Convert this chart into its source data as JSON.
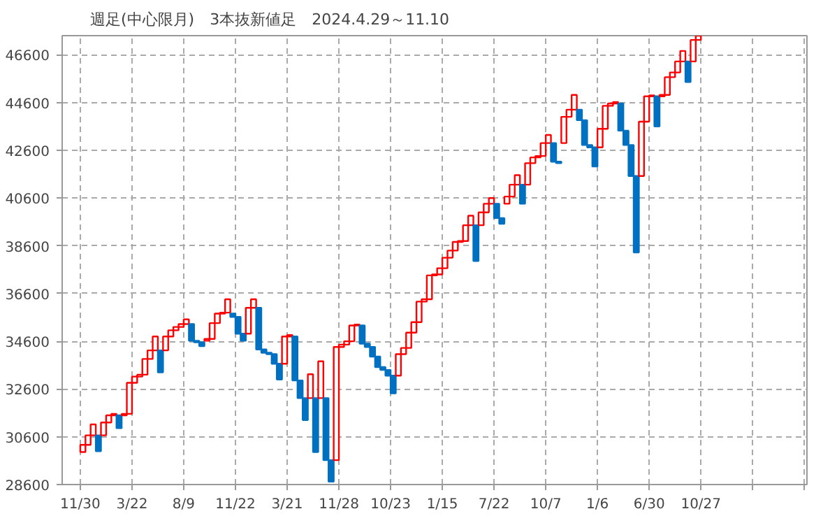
{
  "chart_data": {
    "type": "bar",
    "title": "週足(中心限月)　3本抜新値足　2024.4.29～11.10",
    "categories": [
      "11/30",
      null,
      null,
      null,
      null,
      null,
      null,
      null,
      null,
      null,
      "3/22",
      null,
      null,
      null,
      null,
      null,
      null,
      null,
      null,
      null,
      "8/9",
      null,
      null,
      null,
      null,
      null,
      null,
      null,
      null,
      null,
      "11/22",
      null,
      null,
      null,
      null,
      null,
      null,
      null,
      null,
      null,
      "3/21",
      null,
      null,
      null,
      null,
      null,
      null,
      null,
      null,
      null,
      "11/28",
      null,
      null,
      null,
      null,
      null,
      null,
      null,
      null,
      null,
      "10/23",
      null,
      null,
      null,
      null,
      null,
      null,
      null,
      null,
      null,
      "1/15",
      null,
      null,
      null,
      null,
      null,
      null,
      null,
      null,
      null,
      "7/22",
      null,
      null,
      null,
      null,
      null,
      null,
      null,
      null,
      null,
      "10/7",
      null,
      null,
      null,
      null,
      null,
      null,
      null,
      null,
      null,
      "1/6",
      null,
      null,
      null,
      null,
      null,
      null,
      null,
      null,
      null,
      "6/30",
      null,
      null,
      null,
      null,
      null,
      null,
      null,
      null,
      null,
      "10/27",
      null,
      null,
      null,
      null,
      null,
      null,
      null,
      null,
      null,
      null,
      null,
      null,
      null,
      null,
      null,
      null,
      null,
      null,
      null,
      null
    ],
    "base": [
      29960,
      30260,
      30660,
      30660,
      30660,
      31200,
      31500,
      31500,
      31500,
      31560,
      32860,
      33120,
      33200,
      33860,
      34220,
      34220,
      34220,
      34800,
      35060,
      35200,
      35320,
      35320,
      34620,
      34560,
      34620,
      34700,
      35360,
      35760,
      35800,
      35760,
      35620,
      34920,
      34920,
      36000,
      36000,
      34260,
      34120,
      34060,
      33660,
      33660,
      34800,
      34800,
      32960,
      32220,
      32220,
      32220,
      32220,
      32220,
      29620,
      29620,
      34360,
      34460,
      34600,
      35260,
      35260,
      34500,
      34360,
      33960,
      33520,
      33400,
      33160,
      33160,
      34060,
      34320,
      34960,
      35400,
      36260,
      36360,
      37360,
      37400,
      37660,
      38100,
      38400,
      38760,
      38800,
      39460,
      39460,
      39460,
      40000,
      40360,
      40360,
      39760,
      40360,
      40660,
      41160,
      41160,
      41160,
      42060,
      42300,
      42360,
      42900,
      42900,
      42120,
      42900,
      44000,
      44300,
      44300,
      43860,
      42820,
      42720,
      42720,
      43500,
      44460,
      44560,
      44560,
      43420,
      42820,
      41520,
      41520,
      43800,
      44860,
      44860,
      44860,
      44920,
      45660,
      45860,
      46320,
      46320,
      46320,
      47220,
      null,
      null,
      null,
      null,
      null,
      null,
      null,
      null,
      null,
      null,
      null,
      null,
      null,
      null,
      null,
      null,
      null,
      null,
      null,
      null,
      null
    ],
    "values": [
      300,
      400,
      460,
      -660,
      540,
      300,
      60,
      -540,
      60,
      1300,
      260,
      80,
      660,
      360,
      580,
      -920,
      580,
      260,
      140,
      120,
      200,
      -700,
      -60,
      -160,
      80,
      660,
      400,
      40,
      560,
      -140,
      -700,
      -300,
      1080,
      360,
      -1740,
      -140,
      -60,
      -400,
      -660,
      1140,
      60,
      -1840,
      -740,
      -920,
      1000,
      -2260,
      1540,
      -2600,
      -900,
      4740,
      100,
      140,
      660,
      40,
      -760,
      -140,
      -400,
      -440,
      -120,
      -240,
      -740,
      900,
      260,
      640,
      440,
      860,
      100,
      1000,
      40,
      260,
      440,
      300,
      360,
      40,
      660,
      400,
      -1500,
      540,
      360,
      240,
      -600,
      -240,
      300,
      500,
      400,
      -800,
      900,
      240,
      60,
      540,
      340,
      -780,
      -60,
      1100,
      300,
      620,
      -440,
      -1040,
      -100,
      -800,
      780,
      960,
      100,
      60,
      -1140,
      -600,
      -1300,
      -3200,
      2280,
      1060,
      40,
      -1260,
      60,
      740,
      200,
      460,
      440,
      -860,
      900,
      180,
      null,
      null,
      null,
      null,
      null,
      null,
      null,
      null,
      null,
      null,
      null,
      null,
      null,
      null,
      null,
      null,
      null,
      null,
      null,
      null,
      null
    ],
    "colors": [
      "#ff0000",
      "#ff0000",
      "#ff0000",
      "#0070c0",
      "#ff0000",
      "#ff0000",
      "#ff0000",
      "#0070c0",
      "#ff0000",
      "#ff0000",
      "#ff0000",
      "#ff0000",
      "#ff0000",
      "#ff0000",
      "#ff0000",
      "#0070c0",
      "#ff0000",
      "#ff0000",
      "#ff0000",
      "#ff0000",
      "#ff0000",
      "#0070c0",
      "#0070c0",
      "#0070c0",
      "#ff0000",
      "#ff0000",
      "#ff0000",
      "#ff0000",
      "#ff0000",
      "#0070c0",
      "#0070c0",
      "#0070c0",
      "#ff0000",
      "#ff0000",
      "#0070c0",
      "#0070c0",
      "#0070c0",
      "#0070c0",
      "#0070c0",
      "#ff0000",
      "#ff0000",
      "#0070c0",
      "#0070c0",
      "#0070c0",
      "#ff0000",
      "#0070c0",
      "#ff0000",
      "#0070c0",
      "#0070c0",
      "#ff0000",
      "#ff0000",
      "#ff0000",
      "#ff0000",
      "#ff0000",
      "#0070c0",
      "#0070c0",
      "#0070c0",
      "#0070c0",
      "#0070c0",
      "#0070c0",
      "#0070c0",
      "#ff0000",
      "#ff0000",
      "#ff0000",
      "#ff0000",
      "#ff0000",
      "#ff0000",
      "#ff0000",
      "#ff0000",
      "#ff0000",
      "#ff0000",
      "#ff0000",
      "#ff0000",
      "#ff0000",
      "#ff0000",
      "#ff0000",
      "#0070c0",
      "#ff0000",
      "#ff0000",
      "#ff0000",
      "#0070c0",
      "#0070c0",
      "#ff0000",
      "#ff0000",
      "#ff0000",
      "#0070c0",
      "#ff0000",
      "#ff0000",
      "#ff0000",
      "#ff0000",
      "#ff0000",
      "#0070c0",
      "#0070c0",
      "#ff0000",
      "#ff0000",
      "#ff0000",
      "#0070c0",
      "#0070c0",
      "#0070c0",
      "#0070c0",
      "#ff0000",
      "#ff0000",
      "#ff0000",
      "#ff0000",
      "#0070c0",
      "#0070c0",
      "#0070c0",
      "#0070c0",
      "#ff0000",
      "#ff0000",
      "#ff0000",
      "#0070c0",
      "#ff0000",
      "#ff0000",
      "#ff0000",
      "#ff0000",
      "#ff0000",
      "#0070c0",
      "#ff0000",
      "#ff0000",
      null,
      null,
      null,
      null,
      null,
      null,
      null,
      null,
      null,
      null,
      null,
      null,
      null,
      null,
      null,
      null,
      null,
      null,
      null,
      null,
      null
    ],
    "ylim": [
      28600,
      47400
    ],
    "yticks": [
      28600,
      30600,
      32600,
      34600,
      36600,
      38600,
      40600,
      42600,
      44600,
      46600
    ],
    "grid": true
  }
}
